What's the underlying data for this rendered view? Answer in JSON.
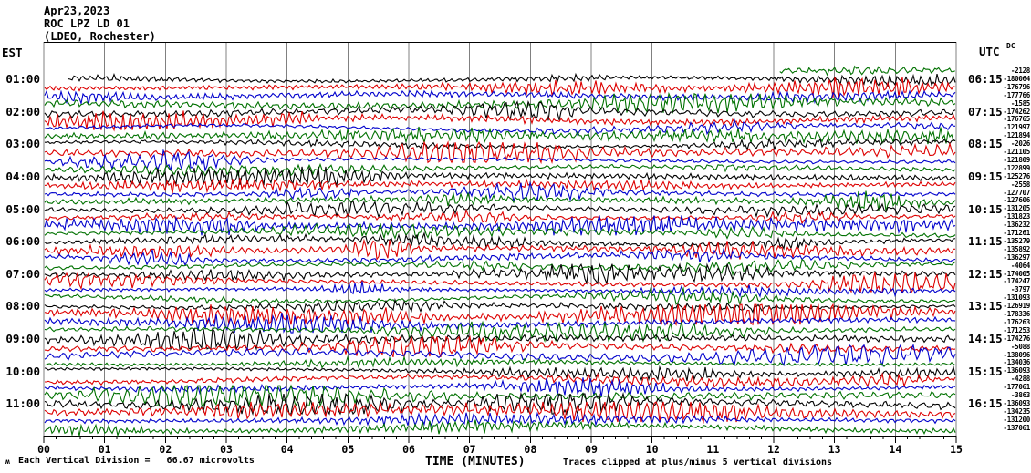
{
  "header": {
    "date": "Apr23,2023",
    "station": "ROC LPZ LD 01",
    "location": "(LDEO, Rochester)"
  },
  "axes": {
    "left_title": "EST",
    "right_title": "UTC",
    "dc_title": "DC",
    "x_title": "TIME (MINUTES)",
    "minute_labels": [
      "00",
      "01",
      "02",
      "03",
      "04",
      "05",
      "06",
      "07",
      "08",
      "09",
      "10",
      "11",
      "12",
      "13",
      "14",
      "15"
    ]
  },
  "footer": {
    "left_note": "Each Vertical Division =   66.67 microvolts",
    "right_note": "Traces clipped at plus/minus 5 vertical divisions",
    "tiny_mark": "ʍ"
  },
  "chart_data": {
    "type": "line",
    "kind": "seismogram-helicorder",
    "title": "ROC LPZ LD 01 (LDEO, Rochester) Apr23,2023",
    "xlabel": "TIME (MINUTES)",
    "x_range": [
      0,
      15
    ],
    "minutes_per_row": 15,
    "grid": true,
    "row_count": 45,
    "first_row_starts_at_minute": 12.1,
    "trace_colors": {
      "black": "#000000",
      "red": "#dd0000",
      "blue": "#0000cc",
      "green": "#007100"
    },
    "grid_color": "#808080",
    "rows": [
      {
        "color": "green",
        "dc": "-2128"
      },
      {
        "color": "black",
        "est": "01:00",
        "utc": "06:15",
        "dc": "-180064"
      },
      {
        "color": "red",
        "dc": "-176796"
      },
      {
        "color": "blue",
        "dc": "-177766"
      },
      {
        "color": "green",
        "dc": "-1585"
      },
      {
        "color": "black",
        "est": "02:00",
        "utc": "07:15",
        "dc": "-174262"
      },
      {
        "color": "red",
        "dc": "-176765"
      },
      {
        "color": "blue",
        "dc": "-121997"
      },
      {
        "color": "green",
        "dc": "-121894"
      },
      {
        "color": "black",
        "est": "03:00",
        "utc": "08:15",
        "dc": "-2026"
      },
      {
        "color": "red",
        "dc": "-121105"
      },
      {
        "color": "blue",
        "dc": "-121809"
      },
      {
        "color": "green",
        "dc": "-122899"
      },
      {
        "color": "black",
        "est": "04:00",
        "utc": "09:15",
        "dc": "-125276"
      },
      {
        "color": "red",
        "dc": "-2558"
      },
      {
        "color": "blue",
        "dc": "-127707"
      },
      {
        "color": "green",
        "dc": "-127606"
      },
      {
        "color": "black",
        "est": "05:00",
        "utc": "10:15",
        "dc": "-131205"
      },
      {
        "color": "red",
        "dc": "-131823"
      },
      {
        "color": "blue",
        "dc": "-136232"
      },
      {
        "color": "green",
        "dc": "-171261"
      },
      {
        "color": "black",
        "est": "06:00",
        "utc": "11:15",
        "dc": "-135279"
      },
      {
        "color": "red",
        "dc": "-135892"
      },
      {
        "color": "blue",
        "dc": "-136297"
      },
      {
        "color": "green",
        "dc": "-4064"
      },
      {
        "color": "black",
        "est": "07:00",
        "utc": "12:15",
        "dc": "-174005"
      },
      {
        "color": "red",
        "dc": "-174247"
      },
      {
        "color": "blue",
        "dc": "-3797"
      },
      {
        "color": "green",
        "dc": "-131093"
      },
      {
        "color": "black",
        "est": "08:00",
        "utc": "13:15",
        "dc": "-126919"
      },
      {
        "color": "red",
        "dc": "-178336"
      },
      {
        "color": "blue",
        "dc": "-176263"
      },
      {
        "color": "green",
        "dc": "-171253"
      },
      {
        "color": "black",
        "est": "09:00",
        "utc": "14:15",
        "dc": "-174276"
      },
      {
        "color": "red",
        "dc": "-5088"
      },
      {
        "color": "blue",
        "dc": "-138096"
      },
      {
        "color": "green",
        "dc": "-134036"
      },
      {
        "color": "black",
        "est": "10:00",
        "utc": "15:15",
        "dc": "-136093"
      },
      {
        "color": "red",
        "dc": "-4288"
      },
      {
        "color": "blue",
        "dc": "-177061"
      },
      {
        "color": "green",
        "dc": "-3863"
      },
      {
        "color": "black",
        "est": "11:00",
        "utc": "16:15",
        "dc": "-136093"
      },
      {
        "color": "red",
        "dc": "-134235"
      },
      {
        "color": "blue",
        "dc": "-131200"
      },
      {
        "color": "green",
        "dc": "-137061"
      }
    ]
  }
}
